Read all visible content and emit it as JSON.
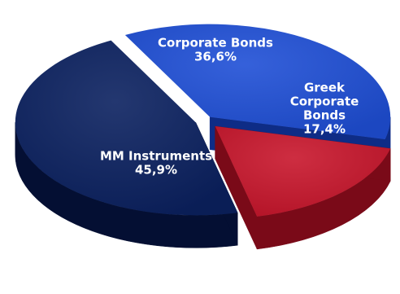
{
  "chart_data": {
    "type": "pie",
    "title": "",
    "slices": [
      {
        "label": "Corporate Bonds",
        "value_label": "36,6%",
        "value": 36.6,
        "color": "#1f4fd6",
        "side_color": "#0e2c86"
      },
      {
        "label": "Greek Corporate Bonds",
        "label_lines": [
          "Greek",
          "Corporate",
          "Bonds"
        ],
        "value_label": "17,4%",
        "value": 17.4,
        "color": "#c8162c",
        "side_color": "#7a0a18"
      },
      {
        "label": "MM Instruments",
        "value_label": "45,9%",
        "value": 45.9,
        "color": "#0b2160",
        "side_color": "#040f33"
      }
    ],
    "style": "3d-exploded",
    "legend": "none"
  }
}
